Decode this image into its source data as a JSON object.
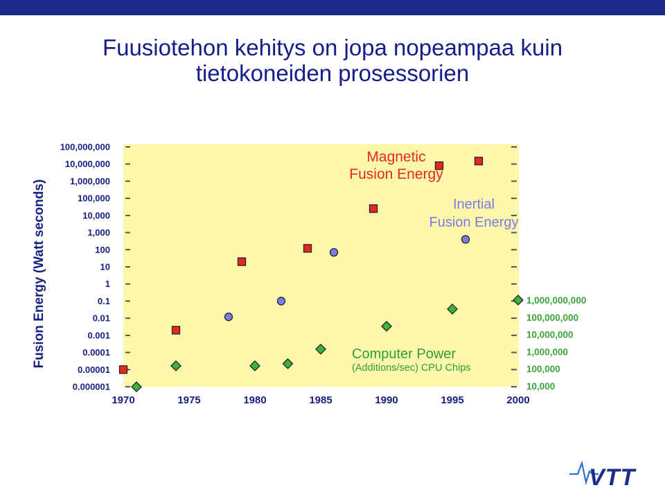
{
  "slide": {
    "title_line1": "Fuusiotehon kehitys on jopa nopeampaa kuin",
    "title_line2": "tietokoneiden prosessorien",
    "logo_text": "VTT"
  },
  "colors": {
    "brand": "#1c2a8c",
    "plot_background": "#fdf7ab",
    "magnetic": "#e8281e",
    "inertial": "#7b7ce6",
    "computer": "#3cb43c",
    "axis_text": "#16207e",
    "right_axis_text": "#3ba33b"
  },
  "chart_data": {
    "type": "scatter",
    "ylabel": "Fusion Energy (Watt seconds)",
    "x_ticks": [
      "1970",
      "1975",
      "1980",
      "1985",
      "1990",
      "1995",
      "2000"
    ],
    "xlim": [
      1970,
      2000
    ],
    "y_scale": "log",
    "ylim": [
      1e-06,
      100000000
    ],
    "y_ticks": [
      "100,000,000",
      "10,000,000",
      "1,000,000",
      "100,000",
      "10,000",
      "1,000",
      "100",
      "10",
      "1",
      "0.1",
      "0.01",
      "0.001",
      "0.0001",
      "0.00001",
      "0.000001"
    ],
    "y_ticks_values": [
      100000000,
      10000000,
      1000000,
      100000,
      10000,
      1000,
      100,
      10,
      1,
      0.1,
      0.01,
      0.001,
      0.0001,
      1e-05,
      1e-06
    ],
    "right_axis": {
      "ticks": [
        "1,000,000,000",
        "100,000,000",
        "10,000,000",
        "1,000,000",
        "100,000",
        "10,000"
      ],
      "ticks_values": [
        1000000000,
        100000000,
        10000000,
        1000000,
        100000,
        10000
      ],
      "scale": "log",
      "ylim": [
        10000,
        1000000000
      ]
    },
    "series": [
      {
        "name": "Magnetic Fusion Energy",
        "label_lines": [
          "Magnetic",
          "Fusion Energy"
        ],
        "marker": "square",
        "axis": "left",
        "color": "#e8281e",
        "points": [
          {
            "x": 1970,
            "y": 1e-05
          },
          {
            "x": 1974,
            "y": 0.002
          },
          {
            "x": 1979,
            "y": 20
          },
          {
            "x": 1984,
            "y": 120
          },
          {
            "x": 1989,
            "y": 25000
          },
          {
            "x": 1994,
            "y": 8000000
          },
          {
            "x": 1997,
            "y": 15000000
          }
        ]
      },
      {
        "name": "Inertial Fusion Energy",
        "label_lines": [
          "Inertial",
          "Fusion Energy"
        ],
        "marker": "circle",
        "axis": "left",
        "color": "#7b7ce6",
        "points": [
          {
            "x": 1978,
            "y": 0.012
          },
          {
            "x": 1982,
            "y": 0.1
          },
          {
            "x": 1986,
            "y": 70
          },
          {
            "x": 1996,
            "y": 400
          }
        ]
      },
      {
        "name": "Computer Power (Additions/sec) CPU Chips",
        "label_lines": [
          "Computer Power",
          "(Additions/sec) CPU Chips"
        ],
        "marker": "diamond",
        "axis": "right",
        "color": "#3cb43c",
        "points": [
          {
            "x": 1971,
            "y": 9000
          },
          {
            "x": 1974,
            "y": 150000
          },
          {
            "x": 1980,
            "y": 150000
          },
          {
            "x": 1982.5,
            "y": 200000
          },
          {
            "x": 1985,
            "y": 1400000
          },
          {
            "x": 1990,
            "y": 30000000
          },
          {
            "x": 1995,
            "y": 300000000
          },
          {
            "x": 2000,
            "y": 1000000000
          }
        ]
      }
    ]
  }
}
